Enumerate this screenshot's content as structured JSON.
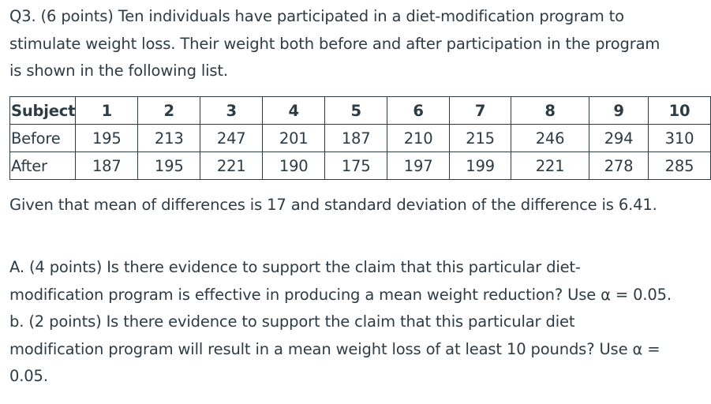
{
  "question": {
    "intro_lines": [
      "Q3. (6 points) Ten individuals have participated in a diet-modification program to",
      "stimulate weight loss. Their weight both before and after participation in the program",
      "is shown in the following list."
    ],
    "given": "Given that mean of differences is 17 and standard deviation of the difference is 6.41.",
    "part_lines": [
      "A. (4 points) Is there evidence to support the claim that this particular diet-",
      "modification program is effective in producing a mean weight reduction? Use α = 0.05.",
      "b. (2 points) Is there evidence to support the claim that this particular diet",
      "modification program will result in a mean weight loss of at least 10 pounds? Use α =",
      "0.05."
    ]
  },
  "table": {
    "header_label": "Subject",
    "subjects": [
      "1",
      "2",
      "3",
      "4",
      "5",
      "6",
      "7",
      "8",
      "9",
      "10"
    ],
    "rows": [
      {
        "label": "Before",
        "values": [
          "195",
          "213",
          "247",
          "201",
          "187",
          "210",
          "215",
          "246",
          "294",
          "310"
        ]
      },
      {
        "label": "After",
        "values": [
          "187",
          "195",
          "221",
          "190",
          "175",
          "197",
          "199",
          "221",
          "278",
          "285"
        ]
      }
    ]
  }
}
